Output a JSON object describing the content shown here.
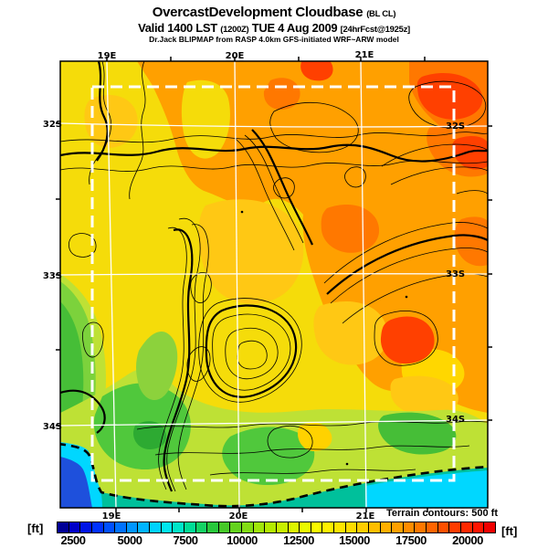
{
  "title": {
    "main": "OvercastDevelopment Cloudbase",
    "main_suffix": "(BL CL)",
    "valid": {
      "p1": "Valid 1400 LST",
      "p2": "(1200Z)",
      "p3": "TUE 4 Aug 2009",
      "p4": "[24hrFcst@1925z]"
    },
    "model_line": "Dr.Jack BLIPMAP from RASP 4.0km GFS-initiated WRF~ARW model"
  },
  "map": {
    "lat_labels_left": [
      "32S",
      "33S",
      "34S"
    ],
    "lat_labels_right": [
      "32S",
      "33S",
      "34S"
    ],
    "lon_labels_top": [
      "19E",
      "20E",
      "21E"
    ],
    "lon_labels_bottom": [
      "19E",
      "20E",
      "21E"
    ],
    "palette": {
      "base_yellow": "#F5DC0A",
      "amber": "#FFC814",
      "orange": "#FFA000",
      "dark_orange": "#FF7800",
      "red": "#FF4000",
      "yellow_green": "#BEE135",
      "green": "#50C83C",
      "dark_green": "#2DAA32",
      "teal": "#00C09B",
      "cyan": "#00D7FF",
      "deep_blue": "#1E50DC",
      "graticule_white": "#FFFFFF",
      "contour_black": "#000000"
    }
  },
  "legend": {
    "terrain_note": "Terrain contours: 500 ft",
    "unit_left": "[ft]",
    "unit_right": "[ft]",
    "ticks": [
      "2500",
      "5000",
      "7500",
      "10000",
      "12500",
      "15000",
      "17500",
      "20000"
    ],
    "colors": [
      "#000096",
      "#0000C8",
      "#0014E6",
      "#0032FF",
      "#0050FF",
      "#0072FF",
      "#0096FF",
      "#00B4FF",
      "#00D2FF",
      "#00E6F0",
      "#00E6C8",
      "#00DC96",
      "#14D264",
      "#28C83C",
      "#46C828",
      "#64D21E",
      "#82DC14",
      "#A0E60A",
      "#B4EB00",
      "#C8F000",
      "#DCF500",
      "#EBFA00",
      "#FAFA00",
      "#FFF000",
      "#FFE600",
      "#FFDC00",
      "#FFCD00",
      "#FFBE00",
      "#FFAF00",
      "#FFA000",
      "#FF8C00",
      "#FF7800",
      "#FF6400",
      "#FF5000",
      "#FF3C00",
      "#FF2800",
      "#FF1400",
      "#F00000"
    ]
  }
}
